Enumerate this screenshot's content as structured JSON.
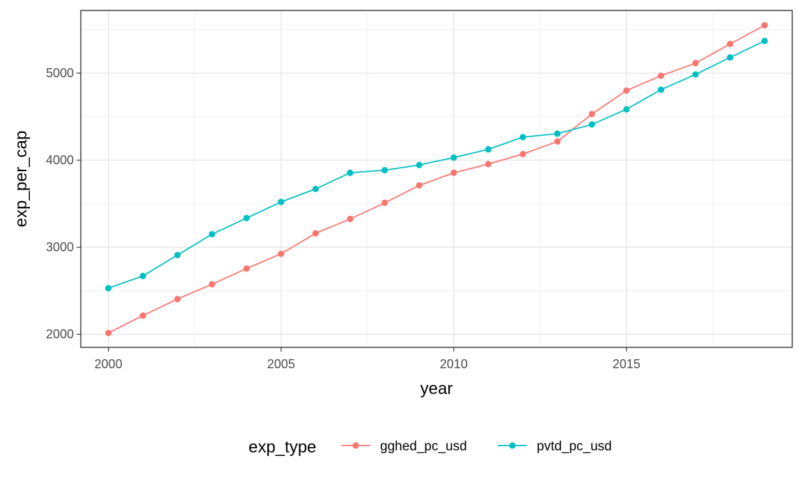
{
  "chart_data": {
    "type": "line",
    "title": "",
    "xlabel": "year",
    "ylabel": "exp_per_cap",
    "xlim": [
      1999.2,
      2019.8
    ],
    "ylim": [
      1850,
      5720
    ],
    "x_ticks": [
      2000,
      2005,
      2010,
      2015
    ],
    "y_ticks": [
      2000,
      3000,
      4000,
      5000
    ],
    "x": [
      2000,
      2001,
      2002,
      2003,
      2004,
      2005,
      2006,
      2007,
      2008,
      2009,
      2010,
      2011,
      2012,
      2013,
      2014,
      2015,
      2016,
      2017,
      2018,
      2019
    ],
    "grid": true,
    "legend": {
      "title": "exp_type",
      "position": "bottom"
    },
    "series": [
      {
        "name": "gghed_pc_usd",
        "color": "#F8766D",
        "values": [
          2015,
          2215,
          2405,
          2575,
          2755,
          2925,
          3160,
          3325,
          3510,
          3710,
          3855,
          3955,
          4070,
          4215,
          4530,
          4800,
          4970,
          5115,
          5335,
          5550
        ]
      },
      {
        "name": "pvtd_pc_usd",
        "color": "#00BFC4",
        "values": [
          2530,
          2670,
          2910,
          3150,
          3335,
          3520,
          3670,
          3855,
          3885,
          3945,
          4030,
          4125,
          4265,
          4305,
          4410,
          4585,
          4810,
          4985,
          5180,
          5370
        ]
      }
    ]
  }
}
